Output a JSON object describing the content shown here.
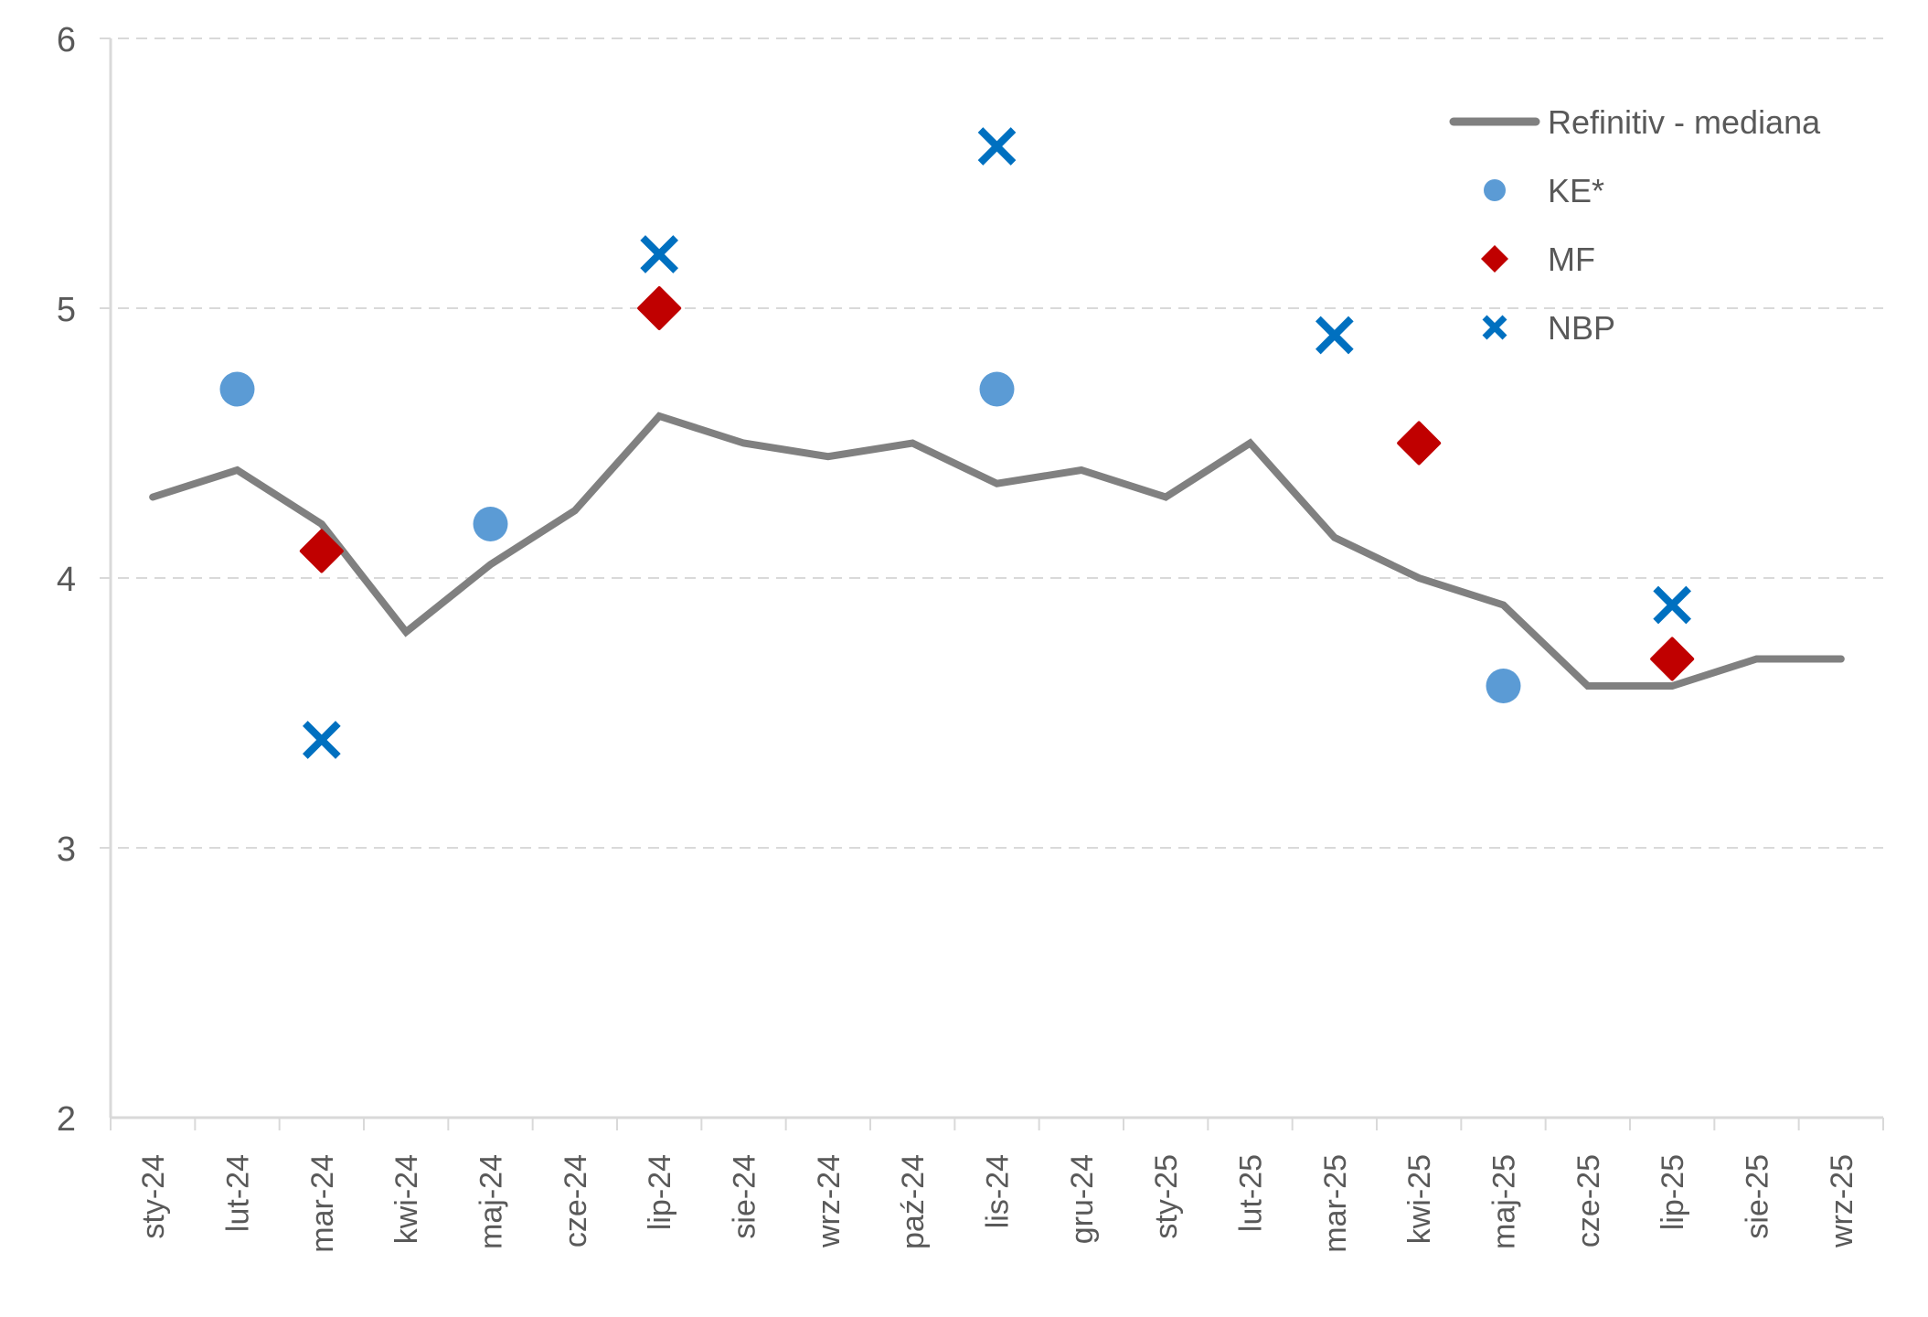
{
  "chart_data": {
    "type": "line",
    "title": "",
    "xlabel": "",
    "ylabel": "",
    "ylim": [
      2,
      6
    ],
    "yticks": [
      2,
      3,
      4,
      5,
      6
    ],
    "grid": "horizontal-dashed",
    "legend_position": "top-right",
    "categories": [
      "sty-24",
      "lut-24",
      "mar-24",
      "kwi-24",
      "maj-24",
      "cze-24",
      "lip-24",
      "sie-24",
      "wrz-24",
      "paź-24",
      "lis-24",
      "gru-24",
      "sty-25",
      "lut-25",
      "mar-25",
      "kwi-25",
      "maj-25",
      "cze-25",
      "lip-25",
      "sie-25",
      "wrz-25"
    ],
    "series": [
      {
        "name": "Refinitiv - mediana",
        "kind": "line",
        "color": "#808080",
        "values": [
          4.3,
          4.4,
          4.2,
          3.8,
          4.05,
          4.25,
          4.6,
          4.5,
          4.45,
          4.5,
          4.35,
          4.4,
          4.3,
          4.5,
          4.15,
          4.0,
          3.9,
          3.6,
          3.6,
          3.7,
          3.7
        ]
      },
      {
        "name": "KE*",
        "kind": "circle",
        "color": "#5B9BD5",
        "values": [
          null,
          4.7,
          null,
          null,
          4.2,
          null,
          null,
          null,
          null,
          null,
          4.7,
          null,
          null,
          null,
          null,
          null,
          3.6,
          null,
          null,
          null,
          null
        ]
      },
      {
        "name": "MF",
        "kind": "diamond",
        "color": "#C00000",
        "values": [
          null,
          null,
          4.1,
          null,
          null,
          null,
          5.0,
          null,
          null,
          null,
          null,
          null,
          null,
          null,
          null,
          4.5,
          null,
          null,
          3.7,
          null,
          null
        ]
      },
      {
        "name": "NBP",
        "kind": "cross",
        "color": "#0070C0",
        "values": [
          null,
          null,
          3.4,
          null,
          null,
          null,
          5.2,
          null,
          null,
          null,
          5.6,
          null,
          null,
          null,
          4.9,
          null,
          null,
          null,
          3.9,
          null,
          null
        ]
      }
    ]
  }
}
